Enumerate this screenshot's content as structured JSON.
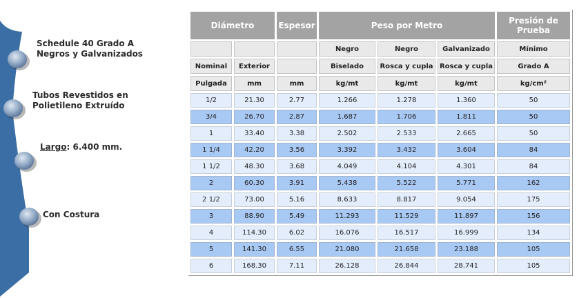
{
  "features": [
    {
      "text_lines": [
        "Schedule 40 Grado A",
        "Negros y Galvanizados"
      ]
    },
    {
      "text_lines": [
        "Tubos Revestidos en",
        "Polietileno Extruído"
      ]
    },
    {
      "label": "Largo",
      "value": ": 6.400 mm."
    },
    {
      "text_lines": [
        "Con Costura"
      ]
    }
  ],
  "colors": {
    "sidebar": "#3a6ea5",
    "header": "#a3a3a3",
    "row_light": "#e3edfc",
    "row_blue": "#a9c9f5"
  },
  "table": {
    "headers": {
      "diametro": "Diámetro",
      "espesor": "Espesor",
      "peso": "Peso por Metro",
      "presion_1": "Presión de",
      "presion_2": "Prueba"
    },
    "sub1": [
      "",
      "",
      "",
      "Negro",
      "Negro",
      "Galvanizado",
      "Mínimo"
    ],
    "sub2": [
      "Nominal",
      "Exterior",
      "",
      "Biselado",
      "Rosca y cupla",
      "Rosca y cupla",
      "Grado A"
    ],
    "units": [
      "Pulgada",
      "mm",
      "mm",
      "kg/mt",
      "kg/mt",
      "kg/mt",
      "kg/cm²"
    ],
    "rows": [
      [
        "1/2",
        "21.30",
        "2.77",
        "1.266",
        "1.278",
        "1.360",
        "50"
      ],
      [
        "3/4",
        "26.70",
        "2.87",
        "1.687",
        "1.706",
        "1.811",
        "50"
      ],
      [
        "1",
        "33.40",
        "3.38",
        "2.502",
        "2.533",
        "2.665",
        "50"
      ],
      [
        "1 1/4",
        "42.20",
        "3.56",
        "3.392",
        "3.432",
        "3.604",
        "84"
      ],
      [
        "1 1/2",
        "48.30",
        "3.68",
        "4.049",
        "4.104",
        "4.301",
        "84"
      ],
      [
        "2",
        "60.30",
        "3.91",
        "5.438",
        "5.522",
        "5.771",
        "162"
      ],
      [
        "2 1/2",
        "73.00",
        "5.16",
        "8.633",
        "8.817",
        "9.054",
        "175"
      ],
      [
        "3",
        "88.90",
        "5.49",
        "11.293",
        "11.529",
        "11.897",
        "156"
      ],
      [
        "4",
        "114.30",
        "6.02",
        "16.076",
        "16.517",
        "16.999",
        "134"
      ],
      [
        "5",
        "141.30",
        "6.55",
        "21.080",
        "21.658",
        "23.188",
        "105"
      ],
      [
        "6",
        "168.30",
        "7.11",
        "26.128",
        "26.844",
        "28.741",
        "105"
      ]
    ]
  }
}
